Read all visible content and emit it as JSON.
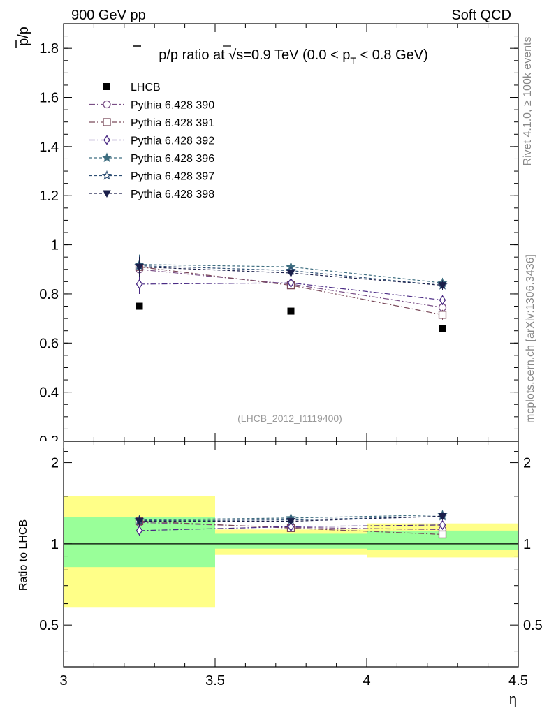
{
  "header": {
    "left_label": "900 GeV pp",
    "right_label": "Soft QCD"
  },
  "side_labels": {
    "rivet": "Rivet 4.1.0, ≥ 100k events",
    "mcplots": "mcplots.cern.ch [arXiv:1306.3436]"
  },
  "chart_data": {
    "type": "scatter",
    "title": "p̄/p ratio at √s=0.9 TeV (0.0 < pT < 0.8 GeV)",
    "title_parts": {
      "pre": "p/p ratio at ",
      "sqrt": "√",
      "s_rest": "s=0.9 TeV (0.0 < p",
      "sub": "T",
      "post": " < 0.8 GeV)"
    },
    "analysis_label": "(LHCB_2012_I1119400)",
    "xlabel": "η",
    "ylabel": "p/p",
    "ratio_ylabel": "Ratio to LHCB",
    "xlim": [
      3.0,
      4.5
    ],
    "ylim": [
      0.2,
      1.9
    ],
    "ratio_ylim": [
      0.35,
      2.4
    ],
    "x_ticks": [
      3,
      3.5,
      4,
      4.5
    ],
    "x_tick_labels": [
      "3",
      "3.5",
      "4",
      "4.5"
    ],
    "y_ticks": [
      0.4,
      0.6,
      0.8,
      1.0,
      1.2,
      1.4,
      1.6,
      1.8
    ],
    "y_tick_labels": [
      "0.4",
      "0.6",
      "0.8",
      "1",
      "1.2",
      "1.4",
      "1.6",
      "1.8"
    ],
    "y_cut_label": "0.2",
    "ratio_ticks": [
      0.5,
      1,
      2
    ],
    "ratio_tick_labels": [
      "0.5",
      "1",
      "2"
    ],
    "legend_position": "top-left",
    "x": [
      3.25,
      3.75,
      4.25
    ],
    "data": {
      "name": "LHCB",
      "values": [
        0.75,
        0.73,
        0.66
      ]
    },
    "bands": [
      {
        "x_range": [
          3.0,
          3.5
        ],
        "green": [
          0.82,
          1.26
        ],
        "yellow": [
          0.58,
          1.5
        ]
      },
      {
        "x_range": [
          3.5,
          4.0
        ],
        "green": [
          0.96,
          1.09
        ],
        "yellow": [
          0.91,
          1.13
        ]
      },
      {
        "x_range": [
          4.0,
          4.5
        ],
        "green": [
          0.95,
          1.12
        ],
        "yellow": [
          0.89,
          1.19
        ]
      }
    ],
    "series": [
      {
        "name": "Pythia 6.428 390",
        "color": "#7a4f86",
        "marker": "circle-open",
        "dash": "8,3,2,3",
        "values": [
          0.9,
          0.84,
          0.745
        ],
        "errors": [
          0.04,
          0.02,
          0.02
        ]
      },
      {
        "name": "Pythia 6.428 391",
        "color": "#7a4a5a",
        "marker": "square-open",
        "dash": "8,3,2,3",
        "values": [
          0.91,
          0.835,
          0.715
        ],
        "errors": [
          0.04,
          0.02,
          0.02
        ]
      },
      {
        "name": "Pythia 6.428 392",
        "color": "#4a2a84",
        "marker": "diamond-open",
        "dash": "8,3,2,3",
        "values": [
          0.84,
          0.845,
          0.775
        ],
        "errors": [
          0.04,
          0.02,
          0.02
        ]
      },
      {
        "name": "Pythia 6.428 396",
        "color": "#3e6e80",
        "marker": "star-filled",
        "dash": "4,3",
        "values": [
          0.92,
          0.91,
          0.845
        ],
        "errors": [
          0.04,
          0.02,
          0.02
        ]
      },
      {
        "name": "Pythia 6.428 397",
        "color": "#2e4f74",
        "marker": "star-open",
        "dash": "4,3",
        "values": [
          0.915,
          0.895,
          0.835
        ],
        "errors": [
          0.04,
          0.02,
          0.02
        ]
      },
      {
        "name": "Pythia 6.428 398",
        "color": "#1a1f4a",
        "marker": "triangle-down-filled",
        "dash": "4,3",
        "values": [
          0.91,
          0.885,
          0.835
        ],
        "errors": [
          0.04,
          0.02,
          0.02
        ]
      }
    ]
  }
}
